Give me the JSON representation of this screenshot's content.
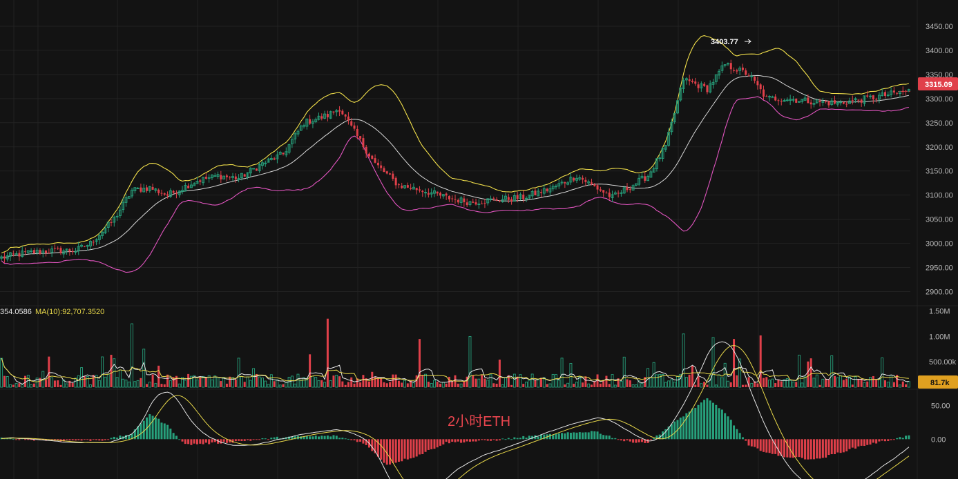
{
  "title": "2小时ETH",
  "colors": {
    "up": "#27a17c",
    "down": "#e0404a",
    "bb_upper": "#f2e04b",
    "bb_mid": "#d8d8d8",
    "bb_lower": "#e255c0",
    "vol_ma_fast": "#e8e8e8",
    "vol_ma_slow": "#e8d84a",
    "macd_line": "#e6e6e6",
    "signal_line": "#e8d84a"
  },
  "price_axis": {
    "ticks": [
      "3450.00",
      "3400.00",
      "3350.00",
      "3300.00",
      "3250.00",
      "3200.00",
      "3150.00",
      "3100.00",
      "3050.00",
      "3000.00",
      "2950.00",
      "2900.00"
    ],
    "range": [
      2875,
      3490
    ],
    "current_price": "3315.09",
    "annotation": "3403.77"
  },
  "volume_axis": {
    "ticks": [
      "1.50M",
      "1.00M",
      "500.00k"
    ],
    "range": [
      0,
      1550000
    ],
    "current": "81.7k",
    "legend_partial": "354.0586",
    "legend_ma10": "MA(10):92,707.3520"
  },
  "macd_axis": {
    "ticks": [
      "50.00",
      "0.00"
    ],
    "range": [
      -55,
      70
    ]
  },
  "chart_data": {
    "type": "candlestick",
    "title": "2小时ETH",
    "price_anchors": [
      [
        0,
        2970
      ],
      [
        8,
        2980
      ],
      [
        18,
        2985
      ],
      [
        25,
        2985
      ],
      [
        30,
        3000
      ],
      [
        38,
        3050
      ],
      [
        44,
        3110
      ],
      [
        50,
        3115
      ],
      [
        56,
        3100
      ],
      [
        66,
        3130
      ],
      [
        73,
        3140
      ],
      [
        80,
        3135
      ],
      [
        88,
        3165
      ],
      [
        95,
        3185
      ],
      [
        102,
        3250
      ],
      [
        110,
        3265
      ],
      [
        114,
        3280
      ],
      [
        118,
        3240
      ],
      [
        126,
        3165
      ],
      [
        134,
        3120
      ],
      [
        142,
        3110
      ],
      [
        150,
        3095
      ],
      [
        158,
        3085
      ],
      [
        166,
        3090
      ],
      [
        176,
        3095
      ],
      [
        186,
        3115
      ],
      [
        194,
        3140
      ],
      [
        202,
        3110
      ],
      [
        206,
        3095
      ],
      [
        210,
        3110
      ],
      [
        218,
        3140
      ],
      [
        224,
        3200
      ],
      [
        230,
        3340
      ],
      [
        238,
        3320
      ],
      [
        244,
        3370
      ],
      [
        252,
        3350
      ],
      [
        258,
        3300
      ],
      [
        264,
        3300
      ],
      [
        272,
        3295
      ],
      [
        282,
        3290
      ],
      [
        292,
        3300
      ],
      [
        306,
        3316
      ]
    ],
    "bands_note": "Bollinger Bands (upper, middle, lower)",
    "volume_spikes": [
      [
        44,
        1.25
      ],
      [
        48,
        0.75
      ],
      [
        110,
        1.35
      ],
      [
        125,
        1.0
      ],
      [
        141,
        0.95
      ],
      [
        158,
        1.0
      ],
      [
        230,
        1.05
      ],
      [
        240,
        0.98
      ],
      [
        247,
        0.95
      ],
      [
        256,
        1.02
      ],
      [
        272,
        0.65
      ]
    ],
    "macd_hist_anchors": [
      [
        0,
        1
      ],
      [
        20,
        -2
      ],
      [
        35,
        -1
      ],
      [
        44,
        8
      ],
      [
        50,
        38
      ],
      [
        56,
        20
      ],
      [
        62,
        -8
      ],
      [
        75,
        -5
      ],
      [
        95,
        3
      ],
      [
        112,
        5
      ],
      [
        122,
        -5
      ],
      [
        130,
        -38
      ],
      [
        140,
        -25
      ],
      [
        150,
        -5
      ],
      [
        165,
        -2
      ],
      [
        180,
        5
      ],
      [
        200,
        12
      ],
      [
        210,
        -3
      ],
      [
        218,
        -5
      ],
      [
        230,
        35
      ],
      [
        238,
        60
      ],
      [
        244,
        40
      ],
      [
        252,
        -10
      ],
      [
        262,
        -25
      ],
      [
        275,
        -30
      ],
      [
        290,
        -10
      ],
      [
        306,
        5
      ]
    ],
    "ylim_price": [
      2875,
      3490
    ]
  }
}
